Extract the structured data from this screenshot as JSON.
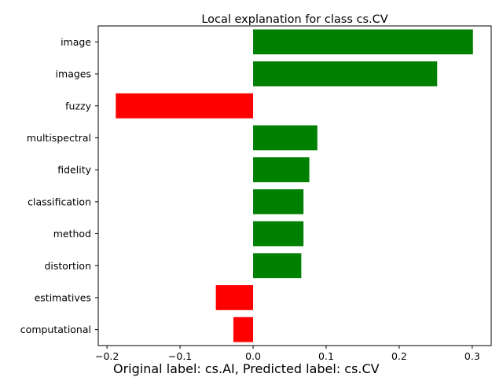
{
  "chart_data": {
    "type": "bar",
    "orientation": "horizontal",
    "title": "Local explanation for class cs.CV",
    "xlabel": "",
    "ylabel": "",
    "categories": [
      "image",
      "images",
      "fuzzy",
      "multispectral",
      "fidelity",
      "classification",
      "method",
      "distortion",
      "estimatives",
      "computational"
    ],
    "values": [
      0.301,
      0.252,
      -0.188,
      0.088,
      0.077,
      0.069,
      0.069,
      0.066,
      -0.051,
      -0.027
    ],
    "xlim": [
      -0.212,
      0.326
    ],
    "xticks": [
      -0.2,
      -0.1,
      0.0,
      0.1,
      0.2,
      0.3
    ],
    "xtick_labels": [
      "−0.2",
      "−0.1",
      "0.0",
      "0.1",
      "0.2",
      "0.3"
    ],
    "grid": false,
    "colors": {
      "positive": "#008000",
      "negative": "#ff0000"
    }
  },
  "caption": "Original label: cs.AI, Predicted label: cs.CV"
}
